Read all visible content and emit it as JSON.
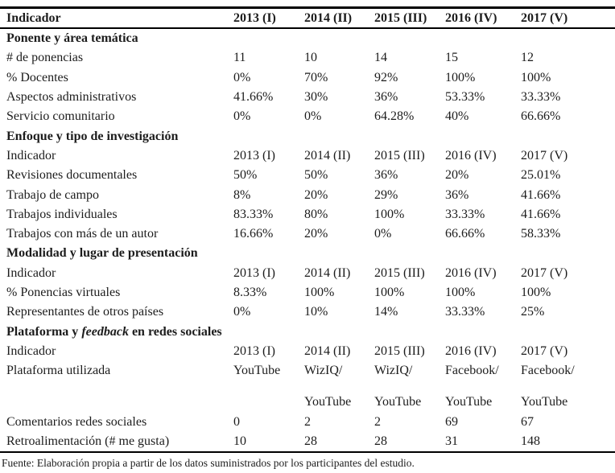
{
  "page": {
    "background": "#ffffff",
    "text_color": "#1c1c1c",
    "rule_color": "#000000"
  },
  "table": {
    "header": {
      "indicator_label": "Indicador",
      "year_columns": [
        "2013 (I)",
        "2014 (II)",
        "2015 (III)",
        "2016 (IV)",
        "2017 (V)"
      ]
    },
    "rows": [
      {
        "type": "section",
        "label": "Ponente y área temática"
      },
      {
        "type": "data",
        "label": "# de ponencias",
        "values": [
          "11",
          "10",
          "14",
          "15",
          "12"
        ]
      },
      {
        "type": "data",
        "label": "% Docentes",
        "values": [
          "0%",
          "70%",
          "92%",
          "100%",
          "100%"
        ]
      },
      {
        "type": "data",
        "label": "Aspectos administrativos",
        "values": [
          "41.66%",
          "30%",
          "36%",
          "53.33%",
          "33.33%"
        ]
      },
      {
        "type": "data",
        "label": "Servicio comunitario",
        "values": [
          "0%",
          "0%",
          "64.28%",
          "40%",
          "66.66%"
        ]
      },
      {
        "type": "section",
        "label": "Enfoque y tipo de investigación"
      },
      {
        "type": "data",
        "label": "Indicador",
        "values": [
          "2013 (I)",
          "2014 (II)",
          "2015 (III)",
          "2016 (IV)",
          "2017 (V)"
        ]
      },
      {
        "type": "data",
        "label": "Revisiones documentales",
        "values": [
          "50%",
          "50%",
          "36%",
          "20%",
          "25.01%"
        ]
      },
      {
        "type": "data",
        "label": "Trabajo de campo",
        "values": [
          "8%",
          "20%",
          "29%",
          "36%",
          "41.66%"
        ]
      },
      {
        "type": "data",
        "label": "Trabajos individuales",
        "values": [
          "83.33%",
          "80%",
          "100%",
          "33.33%",
          "41.66%"
        ]
      },
      {
        "type": "data",
        "label": "Trabajos con más de un autor",
        "values": [
          "16.66%",
          "20%",
          "0%",
          "66.66%",
          "58.33%"
        ]
      },
      {
        "type": "section",
        "label": "Modalidad y lugar de presentación"
      },
      {
        "type": "data",
        "label": "Indicador",
        "values": [
          "2013 (I)",
          "2014 (II)",
          "2015 (III)",
          "2016 (IV)",
          "2017 (V)"
        ]
      },
      {
        "type": "data",
        "label": "% Ponencias virtuales",
        "values": [
          "8.33%",
          "100%",
          "100%",
          "100%",
          "100%"
        ]
      },
      {
        "type": "data",
        "label": "Representantes de otros países",
        "values": [
          "0%",
          "10%",
          "14%",
          "33.33%",
          "25%"
        ]
      },
      {
        "type": "section",
        "label_parts": [
          {
            "text": "Plataforma y ",
            "italic": false
          },
          {
            "text": "feedback",
            "italic": true
          },
          {
            "text": " en redes sociales",
            "italic": false
          }
        ]
      },
      {
        "type": "data",
        "label": "Indicador",
        "values": [
          "2013 (I)",
          "2014 (II)",
          "2015 (III)",
          "2016 (IV)",
          "2017 (V)"
        ]
      },
      {
        "type": "data",
        "label": "Plataforma utilizada",
        "values": [
          "YouTube",
          "WizIQ/",
          "WizIQ/",
          "Facebook/",
          "Facebook/"
        ]
      },
      {
        "type": "spacer"
      },
      {
        "type": "data",
        "label": "",
        "values": [
          "",
          "YouTube",
          "YouTube",
          "YouTube",
          "YouTube"
        ]
      },
      {
        "type": "data",
        "label": "Comentarios redes sociales",
        "values": [
          "0",
          "2",
          "2",
          "69",
          "67"
        ]
      },
      {
        "type": "data",
        "label": "Retroalimentación (# me gusta)",
        "values": [
          "10",
          "28",
          "28",
          "31",
          "148"
        ]
      }
    ],
    "source_note": "Fuente: Elaboración propia a partir de los datos suministrados por los participantes del estudio."
  }
}
